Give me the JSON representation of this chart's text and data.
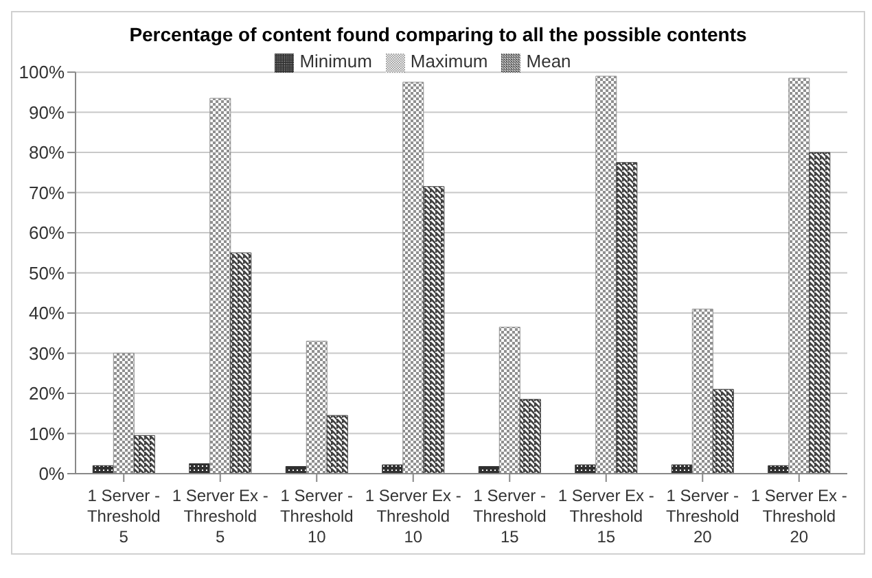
{
  "chart_data": {
    "type": "bar",
    "title": "Percentage of content found comparing to all the possible contents",
    "categories": [
      "1 Server -\nThreshold\n5",
      "1 Server Ex -\nThreshold\n5",
      "1 Server -\nThreshold\n10",
      "1 Server Ex -\nThreshold\n10",
      "1 Server -\nThreshold\n15",
      "1 Server Ex -\nThreshold\n15",
      "1 Server -\nThreshold\n20",
      "1 Server Ex -\nThreshold\n20"
    ],
    "series": [
      {
        "name": "Minimum",
        "color": "#303030",
        "values": [
          2,
          2.5,
          1.8,
          2.2,
          1.8,
          2.2,
          2.2,
          2
        ]
      },
      {
        "name": "Maximum",
        "color": "#909090",
        "values": [
          30,
          93.5,
          33,
          97.5,
          36.5,
          99,
          41,
          98.5
        ]
      },
      {
        "name": "Mean",
        "color": "#404040",
        "values": [
          9.5,
          55,
          14.5,
          71.5,
          18.5,
          77.5,
          21,
          80
        ]
      }
    ],
    "ylim": [
      0,
      100
    ],
    "yticks": [
      {
        "value": 0,
        "label": "0%"
      },
      {
        "value": 10,
        "label": "10%"
      },
      {
        "value": 20,
        "label": "20%"
      },
      {
        "value": 30,
        "label": "30%"
      },
      {
        "value": 40,
        "label": "40%"
      },
      {
        "value": 50,
        "label": "50%"
      },
      {
        "value": 60,
        "label": "60%"
      },
      {
        "value": 70,
        "label": "70%"
      },
      {
        "value": 80,
        "label": "80%"
      },
      {
        "value": 90,
        "label": "90%"
      },
      {
        "value": 100,
        "label": "100%"
      }
    ],
    "grid": "y",
    "legend": "top"
  }
}
